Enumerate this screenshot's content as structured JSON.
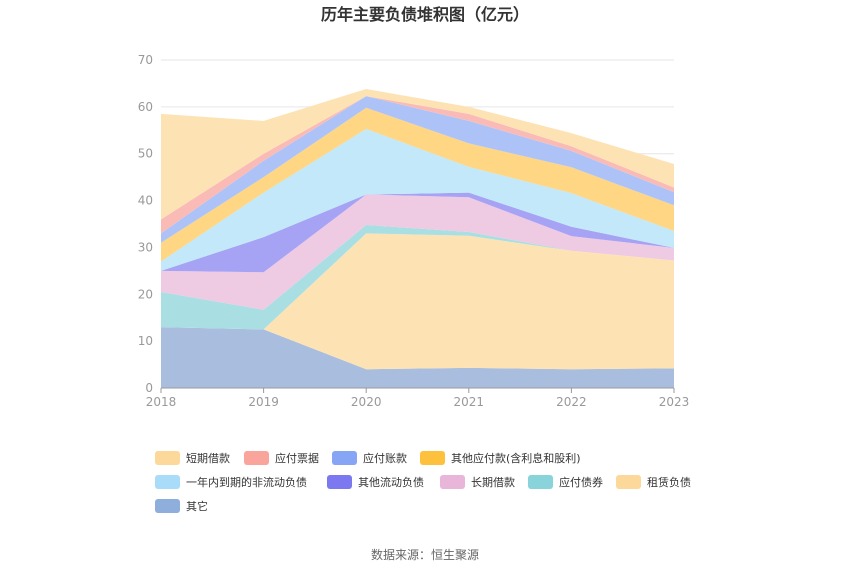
{
  "chart_data": {
    "type": "area",
    "stacked": true,
    "title": "历年主要负债堆积图（亿元）",
    "x": [
      "2018",
      "2019",
      "2020",
      "2021",
      "2022",
      "2023"
    ],
    "ylim": [
      0,
      70
    ],
    "yticks": [
      "0",
      "10",
      "20",
      "30",
      "40",
      "50",
      "60",
      "70"
    ],
    "grid": true,
    "legend_position": "bottom",
    "series": [
      {
        "name": "其它",
        "color": "#a9bedf",
        "values": [
          13.0,
          12.5,
          4.0,
          4.3,
          4.0,
          4.2
        ]
      },
      {
        "name": "租赁负债",
        "color": "#fde3b4",
        "values": [
          0,
          0,
          29.0,
          28.2,
          25.3,
          23.0
        ]
      },
      {
        "name": "应付债券",
        "color": "#a9dfe3",
        "values": [
          7.5,
          4.2,
          1.8,
          0.8,
          0,
          0
        ]
      },
      {
        "name": "长期借款",
        "color": "#efcae3",
        "values": [
          4.5,
          8.0,
          6.5,
          7.4,
          3.1,
          2.7
        ]
      },
      {
        "name": "其他流动负债",
        "color": "#a6a3f4",
        "values": [
          0,
          7.5,
          0,
          1.0,
          2.0,
          0
        ]
      },
      {
        "name": "一年内到期的非流动负债",
        "color": "#c2e8fa",
        "values": [
          2.0,
          9.5,
          14.0,
          5.5,
          7.2,
          3.6
        ]
      },
      {
        "name": "其他应付款(含利息和股利)",
        "color": "#fed684",
        "values": [
          4.0,
          3.3,
          4.5,
          5.0,
          5.5,
          5.5
        ]
      },
      {
        "name": "应付账款",
        "color": "#adc3f8",
        "values": [
          2.0,
          3.5,
          2.5,
          4.8,
          3.5,
          2.8
        ]
      },
      {
        "name": "应付票据",
        "color": "#fabbb6",
        "values": [
          3.0,
          1.5,
          0,
          1.5,
          1.0,
          1.0
        ]
      },
      {
        "name": "短期借款",
        "color": "#fde3b4",
        "values": [
          22.5,
          7.0,
          1.5,
          1.5,
          2.8,
          5.0
        ]
      }
    ],
    "legend": [
      {
        "name": "短期借款",
        "color": "#fdd89b"
      },
      {
        "name": "应付票据",
        "color": "#f9a59b"
      },
      {
        "name": "应付账款",
        "color": "#87a5f5"
      },
      {
        "name": "其他应付款(含利息和股利)",
        "color": "#fdc13d"
      },
      {
        "name": "一年内到期的非流动负债",
        "color": "#a9dcf8"
      },
      {
        "name": "其他流动负债",
        "color": "#7b78f0"
      },
      {
        "name": "长期借款",
        "color": "#e8b6d8"
      },
      {
        "name": "应付债券",
        "color": "#88d4da"
      },
      {
        "name": "租赁负债",
        "color": "#fdd89b"
      },
      {
        "name": "其它",
        "color": "#8eaedb"
      }
    ]
  },
  "footer": {
    "source": "数据来源：恒生聚源"
  }
}
